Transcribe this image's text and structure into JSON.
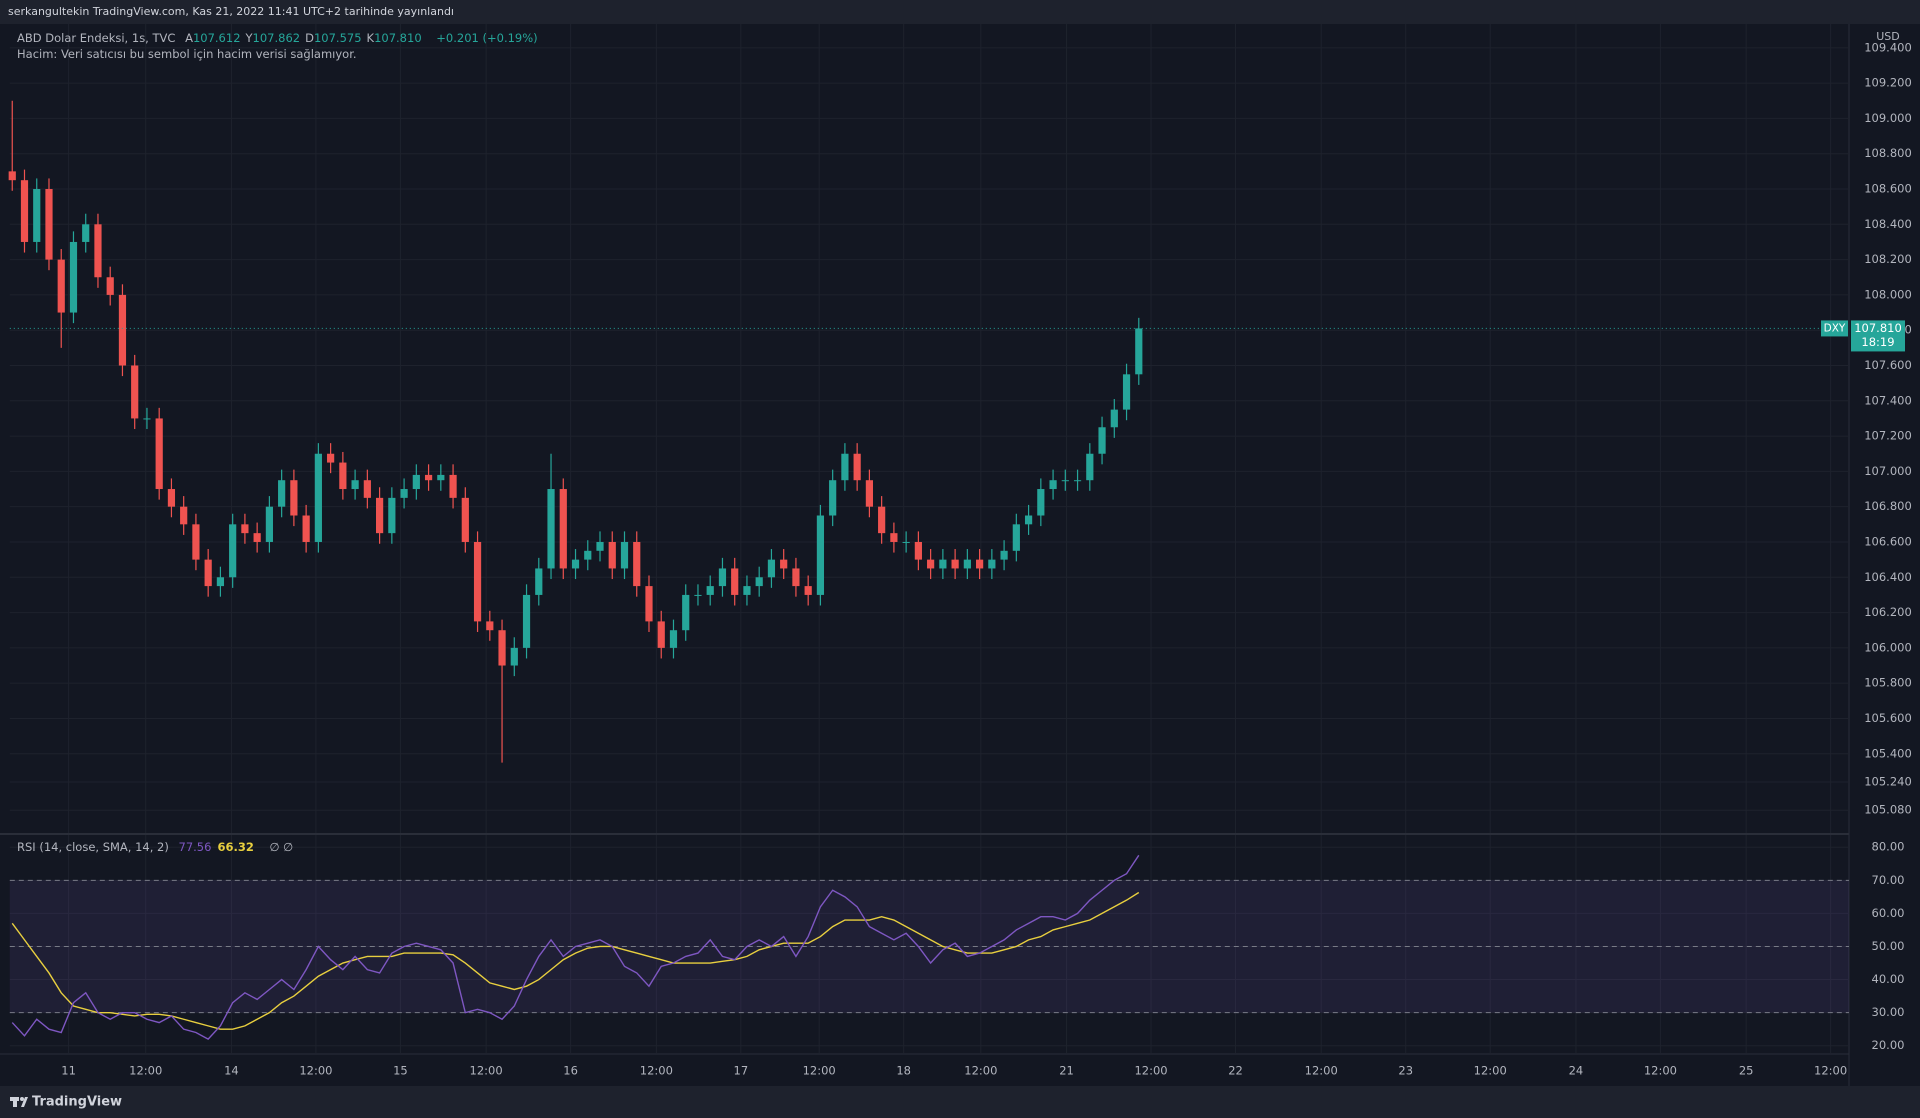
{
  "header": {
    "published": "serkangultekin TradingView.com, Kas 21, 2022 11:41 UTC+2 tarihinde yayınlandı",
    "symbol": "ABD Dolar Endeksi, 1s, TVC",
    "ohlc": [
      {
        "label": "A",
        "value": "107.612"
      },
      {
        "label": "Y",
        "value": "107.862"
      },
      {
        "label": "D",
        "value": "107.575"
      },
      {
        "label": "K",
        "value": "107.810"
      }
    ],
    "change": "+0.201 (+0.19%)",
    "volume_note": "Hacim: Veri satıcısı bu sembol için hacim verisi sağlamıyor."
  },
  "axis_unit": "USD",
  "price_label": {
    "symbol": "DXY",
    "price": "107.810",
    "countdown": "18:19"
  },
  "footer": {
    "brand": "TradingView"
  },
  "chart_data": [
    {
      "type": "candlestick",
      "up_color": "#26a69a",
      "down_color": "#ef5350",
      "grid": true,
      "x": [
        0,
        1,
        2,
        3,
        4,
        5,
        6,
        7,
        8,
        9,
        10,
        11,
        12,
        13,
        14,
        15,
        16,
        17,
        18,
        19,
        20,
        21,
        22,
        23,
        24,
        25,
        26,
        27,
        28,
        29,
        30,
        31,
        32,
        33,
        34,
        35,
        36,
        37,
        38,
        39,
        40,
        41,
        42,
        43,
        44,
        45,
        46,
        47,
        48,
        49,
        50,
        51,
        52,
        53,
        54,
        55,
        56,
        57,
        58,
        59,
        60,
        61,
        62,
        63,
        64,
        65,
        66,
        67,
        68,
        69,
        70,
        71,
        72,
        73,
        74,
        75,
        76,
        77,
        78,
        79,
        80,
        81,
        82,
        83,
        84,
        85,
        86,
        87,
        88,
        89,
        90,
        91,
        92
      ],
      "open": [
        108.7,
        108.65,
        108.3,
        108.6,
        108.2,
        107.9,
        108.3,
        108.4,
        108.1,
        108.0,
        107.6,
        107.3,
        107.3,
        106.9,
        106.8,
        106.7,
        106.5,
        106.35,
        106.4,
        106.7,
        106.65,
        106.6,
        106.8,
        106.95,
        106.75,
        106.6,
        107.1,
        107.05,
        106.9,
        106.95,
        106.85,
        106.65,
        106.85,
        106.9,
        106.98,
        106.95,
        106.98,
        106.85,
        106.6,
        106.15,
        106.1,
        105.9,
        106.0,
        106.3,
        106.45,
        106.9,
        106.45,
        106.5,
        106.55,
        106.6,
        106.45,
        106.6,
        106.35,
        106.15,
        106.0,
        106.1,
        106.3,
        106.3,
        106.35,
        106.45,
        106.3,
        106.35,
        106.4,
        106.5,
        106.45,
        106.35,
        106.3,
        106.75,
        106.95,
        107.1,
        106.95,
        106.8,
        106.65,
        106.6,
        106.6,
        106.5,
        106.45,
        106.5,
        106.45,
        106.5,
        106.45,
        106.5,
        106.55,
        106.7,
        106.75,
        106.9,
        106.95,
        106.95,
        106.95,
        107.1,
        107.25,
        107.35,
        107.55
      ],
      "high": [
        109.1,
        108.71,
        108.66,
        108.66,
        108.26,
        108.36,
        108.46,
        108.46,
        108.16,
        108.06,
        107.66,
        107.36,
        107.36,
        106.96,
        106.86,
        106.76,
        106.56,
        106.46,
        106.76,
        106.76,
        106.71,
        106.86,
        107.01,
        107.01,
        106.81,
        107.16,
        107.16,
        107.11,
        107.01,
        107.01,
        106.91,
        106.91,
        106.96,
        107.04,
        107.04,
        107.04,
        107.04,
        106.91,
        106.66,
        106.21,
        106.16,
        106.06,
        106.36,
        106.51,
        107.1,
        106.96,
        106.56,
        106.61,
        106.66,
        106.66,
        106.66,
        106.66,
        106.41,
        106.21,
        106.16,
        106.36,
        106.36,
        106.41,
        106.51,
        106.51,
        106.41,
        106.46,
        106.56,
        106.56,
        106.51,
        106.41,
        106.81,
        107.01,
        107.16,
        107.16,
        107.01,
        106.86,
        106.71,
        106.66,
        106.66,
        106.56,
        106.56,
        106.56,
        106.56,
        106.56,
        106.56,
        106.61,
        106.76,
        106.81,
        106.96,
        107.01,
        107.01,
        107.01,
        107.16,
        107.31,
        107.41,
        107.61,
        107.87
      ],
      "low": [
        108.59,
        108.24,
        108.24,
        108.14,
        107.7,
        107.84,
        108.24,
        108.04,
        107.94,
        107.54,
        107.24,
        107.24,
        106.84,
        106.74,
        106.64,
        106.44,
        106.29,
        106.29,
        106.34,
        106.59,
        106.54,
        106.54,
        106.74,
        106.69,
        106.54,
        106.54,
        106.99,
        106.84,
        106.84,
        106.79,
        106.59,
        106.59,
        106.79,
        106.84,
        106.89,
        106.89,
        106.79,
        106.54,
        106.09,
        106.04,
        105.35,
        105.84,
        105.94,
        106.24,
        106.39,
        106.39,
        106.39,
        106.44,
        106.49,
        106.39,
        106.39,
        106.29,
        106.09,
        105.94,
        105.94,
        106.04,
        106.24,
        106.24,
        106.29,
        106.24,
        106.24,
        106.29,
        106.34,
        106.39,
        106.29,
        106.24,
        106.24,
        106.69,
        106.89,
        106.89,
        106.74,
        106.59,
        106.54,
        106.54,
        106.44,
        106.39,
        106.39,
        106.39,
        106.39,
        106.39,
        106.39,
        106.44,
        106.49,
        106.64,
        106.69,
        106.84,
        106.89,
        106.89,
        106.89,
        107.04,
        107.19,
        107.29,
        107.49
      ],
      "close": [
        108.65,
        108.3,
        108.6,
        108.2,
        107.9,
        108.3,
        108.4,
        108.1,
        108.0,
        107.6,
        107.3,
        107.3,
        106.9,
        106.8,
        106.7,
        106.5,
        106.35,
        106.4,
        106.7,
        106.65,
        106.6,
        106.8,
        106.95,
        106.75,
        106.6,
        107.1,
        107.05,
        106.9,
        106.95,
        106.85,
        106.65,
        106.85,
        106.9,
        106.98,
        106.95,
        106.98,
        106.85,
        106.6,
        106.15,
        106.1,
        105.9,
        106.0,
        106.3,
        106.45,
        106.9,
        106.45,
        106.5,
        106.55,
        106.6,
        106.45,
        106.6,
        106.35,
        106.15,
        106.0,
        106.1,
        106.3,
        106.3,
        106.35,
        106.45,
        106.3,
        106.35,
        106.4,
        106.5,
        106.45,
        106.35,
        106.3,
        106.75,
        106.95,
        107.1,
        106.95,
        106.8,
        106.65,
        106.6,
        106.6,
        106.5,
        106.45,
        106.5,
        106.45,
        106.5,
        106.45,
        106.5,
        106.55,
        106.7,
        106.75,
        106.9,
        106.95,
        106.95,
        106.95,
        107.1,
        107.25,
        107.35,
        107.55,
        107.81
      ],
      "xlim": [
        -0.2,
        150
      ],
      "xticks": [
        {
          "value": 4.6,
          "label": "11"
        },
        {
          "value": 10.9,
          "label": "12:00"
        },
        {
          "value": 17.9,
          "label": "14"
        },
        {
          "value": 24.8,
          "label": "12:00"
        },
        {
          "value": 31.7,
          "label": "15"
        },
        {
          "value": 38.7,
          "label": "12:00"
        },
        {
          "value": 45.6,
          "label": "16"
        },
        {
          "value": 52.6,
          "label": "12:00"
        },
        {
          "value": 59.5,
          "label": "17"
        },
        {
          "value": 65.9,
          "label": "12:00"
        },
        {
          "value": 72.8,
          "label": "18"
        },
        {
          "value": 79.1,
          "label": "12:00"
        },
        {
          "value": 86.1,
          "label": "21"
        },
        {
          "value": 93,
          "label": "12:00"
        },
        {
          "value": 99.9,
          "label": "22"
        },
        {
          "value": 106.9,
          "label": "12:00"
        },
        {
          "value": 113.8,
          "label": "23"
        },
        {
          "value": 120.7,
          "label": "12:00"
        },
        {
          "value": 127.7,
          "label": "24"
        },
        {
          "value": 134.6,
          "label": "12:00"
        },
        {
          "value": 141.6,
          "label": "25"
        },
        {
          "value": 148.5,
          "label": "12:00"
        }
      ],
      "ylim": [
        104.951,
        109.535
      ],
      "yticks": [
        {
          "value": 109.4,
          "label": "109.400"
        },
        {
          "value": 109.2,
          "label": "109.200"
        },
        {
          "value": 109.0,
          "label": "109.000"
        },
        {
          "value": 108.8,
          "label": "108.800"
        },
        {
          "value": 108.6,
          "label": "108.600"
        },
        {
          "value": 108.4,
          "label": "108.400"
        },
        {
          "value": 108.2,
          "label": "108.200"
        },
        {
          "value": 108.0,
          "label": "108.000"
        },
        {
          "value": 107.8,
          "label": "107.800"
        },
        {
          "value": 107.6,
          "label": "107.600"
        },
        {
          "value": 107.4,
          "label": "107.400"
        },
        {
          "value": 107.2,
          "label": "107.200"
        },
        {
          "value": 107.0,
          "label": "107.000"
        },
        {
          "value": 106.8,
          "label": "106.800"
        },
        {
          "value": 106.6,
          "label": "106.600"
        },
        {
          "value": 106.4,
          "label": "106.400"
        },
        {
          "value": 106.2,
          "label": "106.200"
        },
        {
          "value": 106.0,
          "label": "106.000"
        },
        {
          "value": 105.8,
          "label": "105.800"
        },
        {
          "value": 105.6,
          "label": "105.600"
        },
        {
          "value": 105.4,
          "label": "105.400"
        },
        {
          "value": 105.24,
          "label": "105.240"
        },
        {
          "value": 105.08,
          "label": "105.080"
        }
      ]
    },
    {
      "type": "line",
      "title": "RSI (14, close, SMA, 14, 2)",
      "legend_extra": "∅ ∅",
      "grid": true,
      "x": [
        0,
        1,
        2,
        3,
        4,
        5,
        6,
        7,
        8,
        9,
        10,
        11,
        12,
        13,
        14,
        15,
        16,
        17,
        18,
        19,
        20,
        21,
        22,
        23,
        24,
        25,
        26,
        27,
        28,
        29,
        30,
        31,
        32,
        33,
        34,
        35,
        36,
        37,
        38,
        39,
        40,
        41,
        42,
        43,
        44,
        45,
        46,
        47,
        48,
        49,
        50,
        51,
        52,
        53,
        54,
        55,
        56,
        57,
        58,
        59,
        60,
        61,
        62,
        63,
        64,
        65,
        66,
        67,
        68,
        69,
        70,
        71,
        72,
        73,
        74,
        75,
        76,
        77,
        78,
        79,
        80,
        81,
        82,
        83,
        84,
        85,
        86,
        87,
        88,
        89,
        90,
        91,
        92
      ],
      "series": [
        {
          "color": "#7e57c2",
          "value_label": "77.56",
          "values": [
            27,
            23,
            28,
            25,
            24,
            33,
            36,
            30,
            28,
            30,
            30,
            28,
            27,
            29,
            25,
            24,
            22,
            26,
            33,
            36,
            34,
            37,
            40,
            37,
            43,
            50,
            46,
            43,
            47,
            43,
            42,
            48,
            50,
            51,
            50,
            49,
            45,
            30,
            31,
            30,
            28,
            32,
            40,
            47,
            52,
            47,
            50,
            51,
            52,
            50,
            44,
            42,
            38,
            44,
            45,
            47,
            48,
            52,
            47,
            46,
            50,
            52,
            50,
            53,
            47,
            53,
            62,
            67,
            65,
            62,
            56,
            54,
            52,
            54,
            50,
            45,
            49,
            51,
            47,
            48,
            50,
            52,
            55,
            57,
            59,
            59,
            58,
            60,
            64,
            67,
            70,
            72,
            77.56
          ]
        },
        {
          "color": "#e8cf3f",
          "value_label": "66.32",
          "values": [
            57,
            52,
            47,
            42,
            36,
            32,
            31,
            30,
            30,
            29.5,
            29,
            29.5,
            29.5,
            29,
            28,
            27,
            26,
            25,
            25,
            26,
            28,
            30,
            33,
            35,
            38,
            41,
            43,
            45,
            46,
            47,
            47,
            47,
            48,
            48,
            48,
            48,
            47.5,
            45,
            42,
            39,
            38,
            37,
            38,
            40,
            43,
            46,
            48,
            49.5,
            50,
            50,
            49,
            48,
            47,
            46,
            45,
            45,
            45,
            45,
            45.5,
            46,
            47,
            49,
            50,
            51,
            51,
            51,
            53,
            56,
            58,
            58,
            58,
            59,
            58,
            56,
            54,
            52,
            50,
            49,
            48,
            48,
            48,
            49,
            50,
            52,
            53,
            55,
            56,
            57,
            58,
            60,
            62,
            64,
            66.32
          ]
        }
      ],
      "band_lines": [
        30,
        50,
        70
      ],
      "ylim": [
        17.8,
        83.7
      ],
      "yticks": [
        {
          "value": 80,
          "label": "80.00"
        },
        {
          "value": 70,
          "label": "70.00"
        },
        {
          "value": 60,
          "label": "60.00"
        },
        {
          "value": 50,
          "label": "50.00"
        },
        {
          "value": 40,
          "label": "40.00"
        },
        {
          "value": 30,
          "label": "30.00"
        },
        {
          "value": 20,
          "label": "20.00"
        }
      ]
    }
  ]
}
